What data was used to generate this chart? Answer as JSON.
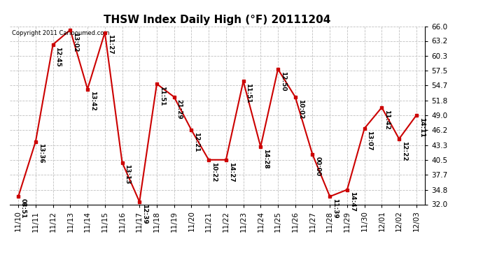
{
  "title": "THSW Index Daily High (°F) 20111204",
  "copyright": "Copyright 2011 Cariboumed.com",
  "background_color": "#ffffff",
  "line_color": "#cc0000",
  "marker_color": "#cc0000",
  "grid_color": "#c0c0c0",
  "ylim": [
    32.0,
    66.0
  ],
  "yticks": [
    32.0,
    34.8,
    37.7,
    40.5,
    43.3,
    46.2,
    49.0,
    51.8,
    54.7,
    57.5,
    60.3,
    63.2,
    66.0
  ],
  "dates": [
    "11/10",
    "11/11",
    "11/12",
    "11/13",
    "11/14",
    "11/15",
    "11/16",
    "11/17",
    "11/18",
    "11/19",
    "11/20",
    "11/21",
    "11/22",
    "11/23",
    "11/24",
    "11/25",
    "11/26",
    "11/27",
    "11/28",
    "11/29",
    "11/30",
    "12/01",
    "12/02",
    "12/03"
  ],
  "values": [
    33.5,
    44.0,
    62.5,
    65.3,
    54.0,
    64.8,
    40.0,
    32.5,
    55.0,
    52.5,
    46.2,
    40.5,
    40.5,
    55.5,
    43.0,
    57.8,
    52.5,
    41.5,
    33.5,
    34.8,
    46.5,
    50.5,
    44.5,
    49.0
  ],
  "labels": [
    "08:51",
    "13:36",
    "12:45",
    "13:02",
    "13:42",
    "11:27",
    "13:13",
    "12:39",
    "11:51",
    "21:29",
    "12:21",
    "10:22",
    "14:27",
    "11:51",
    "14:28",
    "12:50",
    "10:02",
    "00:00",
    "11:39",
    "14:47",
    "13:07",
    "11:42",
    "12:22",
    "14:11"
  ],
  "title_fontsize": 11,
  "tick_fontsize": 7.5,
  "label_fontsize": 6.5,
  "copyright_fontsize": 6
}
